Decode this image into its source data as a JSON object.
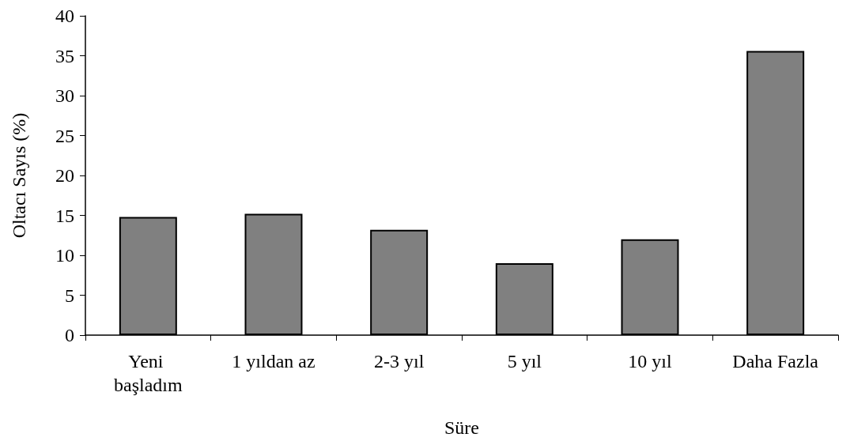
{
  "chart_data": {
    "type": "bar",
    "xlabel": "Süre",
    "ylabel": "Oltacı Sayıs (%)",
    "categories": [
      "Yeni başladım",
      "1 yıldan az",
      "2-3 yıl",
      "5 yıl",
      "10 yıl",
      "Daha Fazla"
    ],
    "values": [
      14.8,
      15.2,
      13.2,
      9,
      12,
      35.6
    ],
    "color": "#808080",
    "ylim": [
      0,
      40
    ],
    "yticks": [
      0,
      5,
      10,
      15,
      20,
      25,
      30,
      35,
      40
    ]
  }
}
